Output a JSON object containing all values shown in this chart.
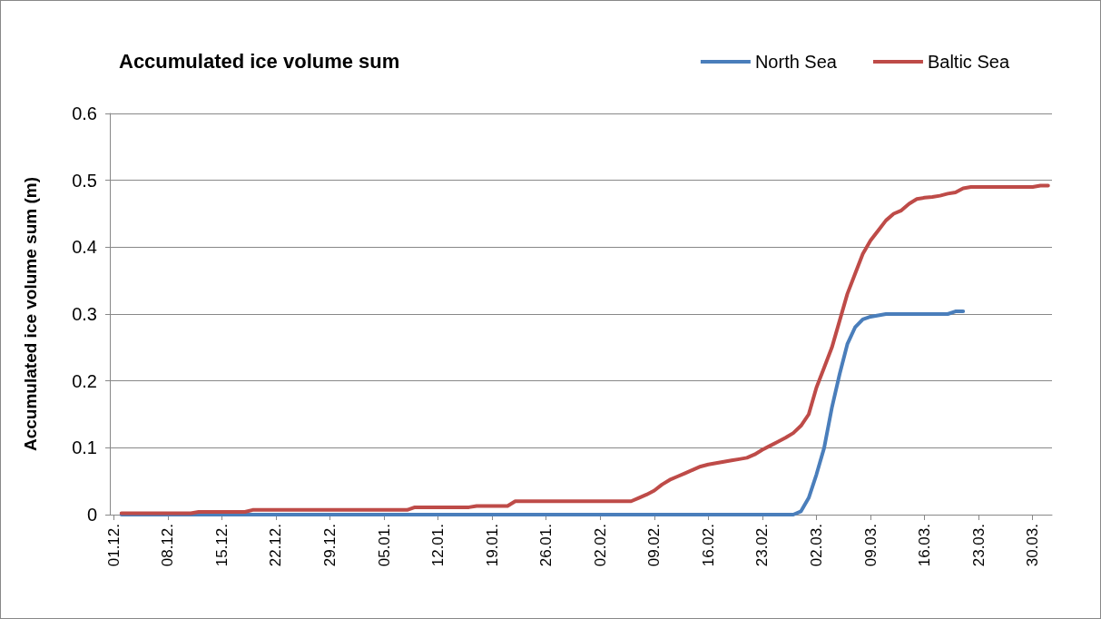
{
  "chart_data": {
    "type": "line",
    "title": "Accumulated ice volume sum",
    "ylabel": "Accumulated ice volume sum (m)",
    "categories": [
      "01.12.",
      null,
      null,
      null,
      null,
      null,
      null,
      "08.12.",
      null,
      null,
      null,
      null,
      null,
      null,
      "15.12.",
      null,
      null,
      null,
      null,
      null,
      null,
      "22.12.",
      null,
      null,
      null,
      null,
      null,
      null,
      "29.12.",
      null,
      null,
      null,
      null,
      null,
      null,
      "05.01.",
      null,
      null,
      null,
      null,
      null,
      null,
      "12.01.",
      null,
      null,
      null,
      null,
      null,
      null,
      "19.01.",
      null,
      null,
      null,
      null,
      null,
      null,
      "26.01.",
      null,
      null,
      null,
      null,
      null,
      null,
      "02.02.",
      null,
      null,
      null,
      null,
      null,
      null,
      "09.02.",
      null,
      null,
      null,
      null,
      null,
      null,
      "16.02.",
      null,
      null,
      null,
      null,
      null,
      null,
      "23.02.",
      null,
      null,
      null,
      null,
      null,
      null,
      "02.03.",
      null,
      null,
      null,
      null,
      null,
      null,
      "09.03.",
      null,
      null,
      null,
      null,
      null,
      null,
      "16.03.",
      null,
      null,
      null,
      null,
      null,
      null,
      "23.03.",
      null,
      null,
      null,
      null,
      null,
      null,
      "30.03.",
      null,
      null
    ],
    "ylim": [
      0,
      0.6
    ],
    "yticks": [
      0,
      0.1,
      0.2,
      0.3,
      0.4,
      0.5,
      0.6
    ],
    "grid": "y",
    "legend": "top right",
    "marker": "none",
    "line_style": "solid",
    "series": [
      {
        "name": "North Sea",
        "color": "#4a7ebb",
        "values": [
          null,
          0,
          0,
          0,
          0,
          0,
          0,
          0,
          0,
          0,
          0,
          0,
          0,
          0,
          0,
          0,
          0,
          0,
          0,
          0,
          0,
          0,
          0,
          0,
          0,
          0,
          0,
          0,
          0,
          0,
          0,
          0,
          0,
          0,
          0,
          0,
          0,
          0,
          0,
          0,
          0,
          0,
          0,
          0,
          0,
          0,
          0,
          0,
          0,
          0,
          0,
          0,
          0,
          0,
          0,
          0,
          0,
          0,
          0,
          0,
          0,
          0,
          0,
          0,
          0,
          0,
          0,
          0,
          0,
          0,
          0,
          0,
          0,
          0,
          0,
          0,
          0,
          0,
          0,
          0,
          0,
          0,
          0,
          0,
          0,
          0,
          0,
          0,
          0,
          0.005,
          0.025,
          0.06,
          0.1,
          0.16,
          0.21,
          0.255,
          0.28,
          0.292,
          0.296,
          0.298,
          0.3,
          0.3,
          0.3,
          0.3,
          0.3,
          0.3,
          0.3,
          0.3,
          0.3,
          0.304,
          0.304,
          null,
          null,
          null,
          null,
          null,
          null,
          null,
          null,
          null,
          null,
          null
        ]
      },
      {
        "name": "Baltic Sea",
        "color": "#be4b48",
        "values": [
          null,
          0.002,
          0.002,
          0.002,
          0.002,
          0.002,
          0.002,
          0.002,
          0.002,
          0.002,
          0.002,
          0.004,
          0.004,
          0.004,
          0.004,
          0.004,
          0.004,
          0.004,
          0.007,
          0.007,
          0.007,
          0.007,
          0.007,
          0.007,
          0.007,
          0.007,
          0.007,
          0.007,
          0.007,
          0.007,
          0.007,
          0.007,
          0.007,
          0.007,
          0.007,
          0.007,
          0.007,
          0.007,
          0.007,
          0.011,
          0.011,
          0.011,
          0.011,
          0.011,
          0.011,
          0.011,
          0.011,
          0.013,
          0.013,
          0.013,
          0.013,
          0.013,
          0.02,
          0.02,
          0.02,
          0.02,
          0.02,
          0.02,
          0.02,
          0.02,
          0.02,
          0.02,
          0.02,
          0.02,
          0.02,
          0.02,
          0.02,
          0.02,
          0.025,
          0.03,
          0.036,
          0.045,
          0.052,
          0.057,
          0.062,
          0.067,
          0.072,
          0.075,
          0.077,
          0.079,
          0.081,
          0.083,
          0.085,
          0.09,
          0.097,
          0.103,
          0.109,
          0.115,
          0.122,
          0.133,
          0.15,
          0.19,
          0.22,
          0.25,
          0.29,
          0.33,
          0.36,
          0.39,
          0.41,
          0.425,
          0.44,
          0.45,
          0.455,
          0.465,
          0.472,
          0.474,
          0.475,
          0.477,
          0.48,
          0.482,
          0.488,
          0.49,
          0.49,
          0.49,
          0.49,
          0.49,
          0.49,
          0.49,
          0.49,
          0.49,
          0.492,
          0.492
        ]
      }
    ]
  }
}
